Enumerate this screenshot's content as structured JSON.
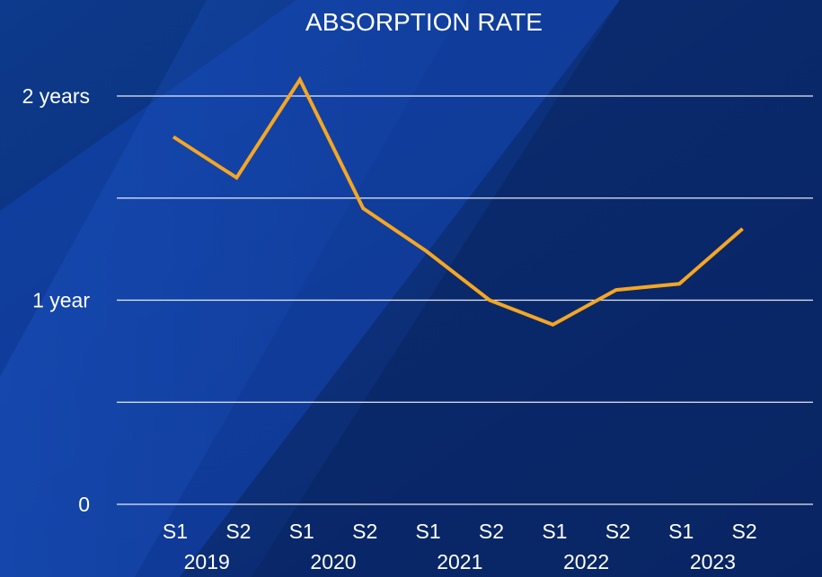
{
  "chart_data": {
    "type": "line",
    "title": "ABSORPTION RATE",
    "xlabel": "",
    "ylabel": "",
    "categories": [
      "S1",
      "S2",
      "S1",
      "S2",
      "S1",
      "S2",
      "S1",
      "S2",
      "S1",
      "S2"
    ],
    "year_groups": [
      {
        "label": "2019",
        "start": 0,
        "end": 1
      },
      {
        "label": "2020",
        "start": 2,
        "end": 3
      },
      {
        "label": "2021",
        "start": 4,
        "end": 5
      },
      {
        "label": "2022",
        "start": 6,
        "end": 7
      },
      {
        "label": "2023",
        "start": 8,
        "end": 9
      }
    ],
    "y_unit": "years",
    "ylim": [
      0,
      2
    ],
    "yticks": [
      {
        "value": 0,
        "label": "0"
      },
      {
        "value": 1,
        "label": "1 year"
      },
      {
        "value": 2,
        "label": "2 years"
      }
    ],
    "gridlines_at": [
      0,
      0.5,
      1,
      1.5,
      2
    ],
    "grid": true,
    "series": [
      {
        "values": [
          1.8,
          1.6,
          2.08,
          1.45,
          1.24,
          1.0,
          0.88,
          1.05,
          1.08,
          1.35
        ],
        "color": "#f5a623"
      }
    ],
    "background_color": "#0a2a6b",
    "text_color": "#ffffff",
    "grid_color": "#ffffff"
  }
}
